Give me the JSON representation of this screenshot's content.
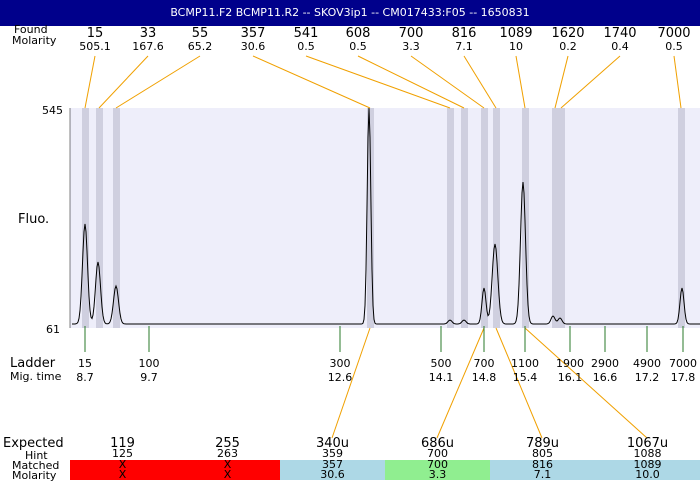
{
  "title": "BCMP11.F2  BCMP11.R2 -- SKOV3ip1 -- CM017433:F05 -- 1650831",
  "labels": {
    "found": "Found",
    "molarity": "Molarity",
    "fluo": "Fluo.",
    "ladder": "Ladder",
    "mig_time": "Mig. time",
    "expected": "Expected",
    "hint": "Hint",
    "matched": "Matched",
    "molarity_bottom": "Molarity"
  },
  "y_axis": {
    "top": "545",
    "bottom": "61"
  },
  "found_peaks": [
    {
      "size": "15",
      "molarity": "505.1"
    },
    {
      "size": "33",
      "molarity": "167.6"
    },
    {
      "size": "55",
      "molarity": "65.2"
    },
    {
      "size": "357",
      "molarity": "30.6"
    },
    {
      "size": "541",
      "molarity": "0.5"
    },
    {
      "size": "608",
      "molarity": "0.5"
    },
    {
      "size": "700",
      "molarity": "3.3"
    },
    {
      "size": "816",
      "molarity": "7.1"
    },
    {
      "size": "1089",
      "molarity": "10"
    },
    {
      "size": "1620",
      "molarity": "0.2"
    },
    {
      "size": "1740",
      "molarity": "0.4"
    },
    {
      "size": "7000",
      "molarity": "0.5"
    }
  ],
  "ladder": [
    {
      "size": "15",
      "time": "8.7"
    },
    {
      "size": "100",
      "time": "9.7"
    },
    {
      "size": "300",
      "time": "12.6"
    },
    {
      "size": "500",
      "time": "14.1"
    },
    {
      "size": "700",
      "time": "14.8"
    },
    {
      "size": "1100",
      "time": "15.4"
    },
    {
      "size": "1900",
      "time": "16.1"
    },
    {
      "size": "2900",
      "time": "16.6"
    },
    {
      "size": "4900",
      "time": "17.2"
    },
    {
      "size": "7000",
      "time": "17.8"
    }
  ],
  "expected": [
    {
      "size": "119",
      "hint": "125",
      "matched": "X",
      "molarity": "X",
      "status": "none"
    },
    {
      "size": "255",
      "hint": "263",
      "matched": "X",
      "molarity": "X",
      "status": "none"
    },
    {
      "size": "340u",
      "hint": "359",
      "matched": "357",
      "molarity": "30.6",
      "status": "match"
    },
    {
      "size": "686u",
      "hint": "700",
      "matched": "700",
      "molarity": "3.3",
      "status": "good"
    },
    {
      "size": "789u",
      "hint": "805",
      "matched": "816",
      "molarity": "7.1",
      "status": "match"
    },
    {
      "size": "1067u",
      "hint": "1088",
      "matched": "1089",
      "molarity": "10.0",
      "status": "match"
    }
  ],
  "colors": {
    "title_bg": "#00008b",
    "plot_bg": "#eeeefa",
    "peak_band": "#cfcfdf",
    "found_line": "#f0a000",
    "ladder_tick": "#2a7a2a",
    "none": "#ff0000",
    "match": "#add8e6",
    "good": "#90ee90"
  }
}
